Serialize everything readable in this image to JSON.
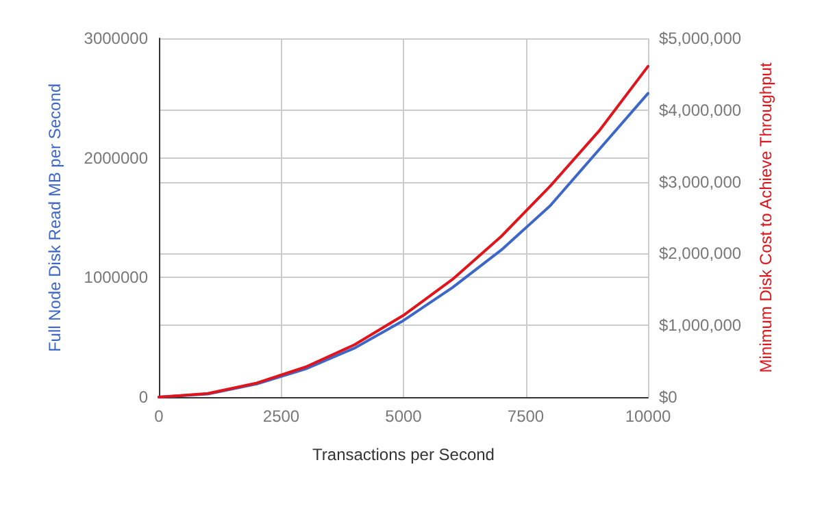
{
  "chart_data": {
    "type": "line",
    "xlabel": "Transactions per Second",
    "ylabel": "Full Node Disk Read MB per Second",
    "y2label": "Minimum Disk Cost to Achieve Throughput",
    "x": [
      0,
      1000,
      2000,
      3000,
      4000,
      5000,
      6000,
      7000,
      8000,
      9000,
      10000
    ],
    "series": [
      {
        "color": "#3c67c9",
        "values": [
          0,
          26000,
          110000,
          235000,
          410000,
          640000,
          915000,
          1230000,
          1600000,
          2070000,
          2540000
        ]
      },
      {
        "color": "#e0141b",
        "axis": "y2",
        "values": [
          0,
          50000,
          196000,
          420000,
          730000,
          1140000,
          1640000,
          2240000,
          2940000,
          3710000,
          4610000
        ]
      }
    ],
    "xlim": [
      0,
      10000
    ],
    "xticks": [
      0,
      2500,
      5000,
      7500,
      10000
    ],
    "ylim": [
      0,
      3000000
    ],
    "yticks": [
      0,
      1000000,
      2000000,
      3000000
    ],
    "y2lim": [
      0,
      5000000
    ],
    "y2ticks": [
      {
        "value": 0,
        "label": "$0"
      },
      {
        "value": 1000000,
        "label": "$1,000,000"
      },
      {
        "value": 2000000,
        "label": "$2,000,000"
      },
      {
        "value": 3000000,
        "label": "$3,000,000"
      },
      {
        "value": 4000000,
        "label": "$4,000,000"
      },
      {
        "value": 5000000,
        "label": "$5,000,000"
      }
    ],
    "grid": true,
    "marker": "none"
  }
}
